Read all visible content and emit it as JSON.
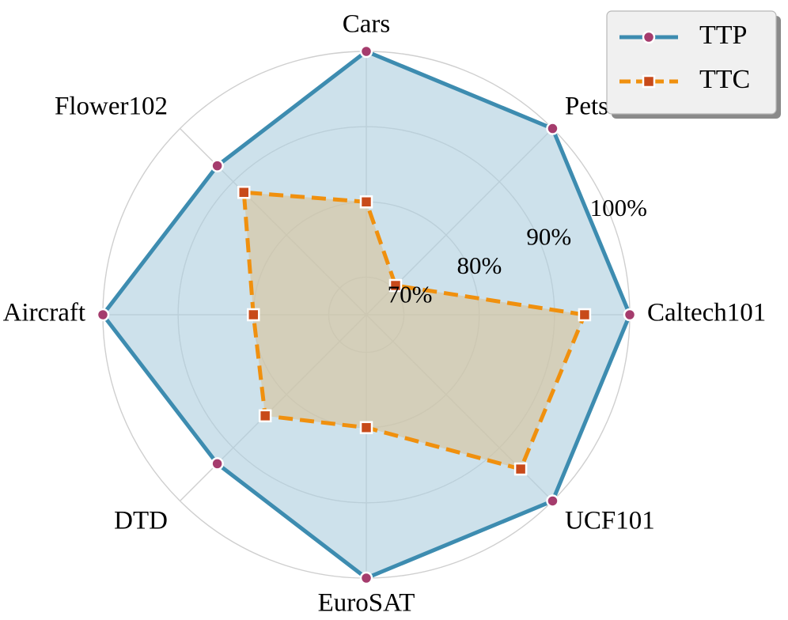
{
  "chart_data": {
    "type": "radar",
    "categories": [
      "Caltech101",
      "Pets",
      "Cars",
      "Flower102",
      "Aircraft",
      "DTD",
      "EuroSAT",
      "UCF101"
    ],
    "series": [
      {
        "name": "TTP",
        "values": [
          100,
          100,
          100,
          93,
          100,
          93,
          100,
          100
        ],
        "line_color": "#3d8cb0",
        "fill_color": "#aecfdf",
        "marker_color": "#a53c6d",
        "line_style": "solid",
        "marker": "circle"
      },
      {
        "name": "TTC",
        "values": [
          94,
          70.5,
          80,
          88,
          80,
          84,
          80,
          94
        ],
        "line_color": "#f0900e",
        "fill_color": "#d8c39a",
        "marker_color": "#c84a1a",
        "line_style": "dashed",
        "marker": "square"
      }
    ],
    "r_ticks": [
      70,
      80,
      90,
      100
    ],
    "r_tick_labels": [
      "70%",
      "80%",
      "90%",
      "100%"
    ],
    "rlim": [
      65,
      100
    ],
    "grid": true,
    "legend_position": "top-right"
  }
}
